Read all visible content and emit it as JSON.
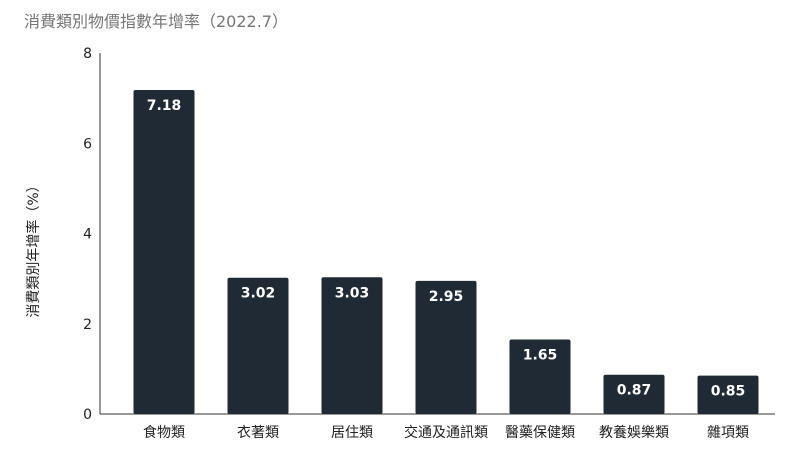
{
  "chart_data": {
    "type": "bar",
    "title": "消費類別物價指數年增率（2022.7）",
    "ylabel": "消費類別年增率（%）",
    "xlabel": "",
    "ylim": [
      0,
      8
    ],
    "yticks": [
      0,
      2,
      4,
      6,
      8
    ],
    "grid": false,
    "categories": [
      "食物類",
      "衣著類",
      "居住類",
      "交通及通訊類",
      "醫藥保健類",
      "教養娛樂類",
      "雜項類"
    ],
    "values": [
      7.18,
      3.02,
      3.03,
      2.95,
      1.65,
      0.87,
      0.85
    ],
    "data_labels": [
      "7.18",
      "3.02",
      "3.03",
      "2.95",
      "1.65",
      "0.87",
      "0.85"
    ],
    "bar_color": "#1f2a35"
  }
}
